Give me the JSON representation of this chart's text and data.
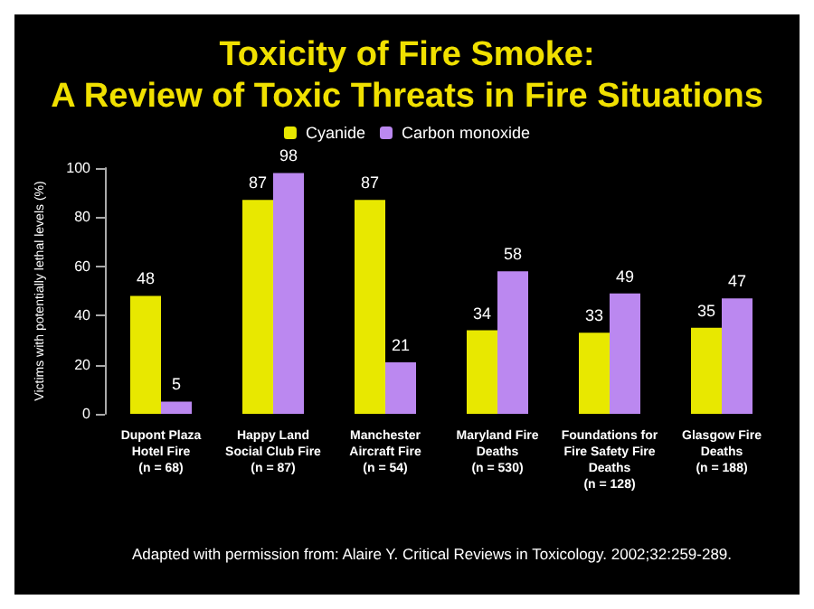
{
  "chart_data": {
    "type": "bar",
    "title": "Toxicity of Fire Smoke:\nA Review of Toxic Threats in Fire Situations",
    "categories": [
      "Dupont Plaza\nHotel Fire\n(n = 68)",
      "Happy Land\nSocial Club Fire\n(n = 87)",
      "Manchester\nAircraft Fire\n(n = 54)",
      "Maryland Fire\nDeaths\n(n = 530)",
      "Foundations for\nFire Safety Fire\nDeaths\n(n = 128)",
      "Glasgow Fire\nDeaths\n(n = 188)"
    ],
    "series": [
      {
        "name": "Cyanide",
        "color": "#e8e800",
        "values": [
          48,
          87,
          87,
          34,
          33,
          35
        ]
      },
      {
        "name": "Carbon monoxide",
        "color": "#bb88f0",
        "values": [
          5,
          98,
          21,
          58,
          49,
          47
        ]
      }
    ],
    "ylabel": "Victims with potentially lethal levels (%)",
    "ylim": [
      0,
      100
    ],
    "yticks": [
      0,
      20,
      40,
      60,
      80,
      100
    ],
    "data_labels": true,
    "legend": "top",
    "grid": false,
    "annotations": [
      "Adapted with permission from: Alaire Y. Critical Reviews in Toxicology. 2002;32:259-289."
    ]
  }
}
